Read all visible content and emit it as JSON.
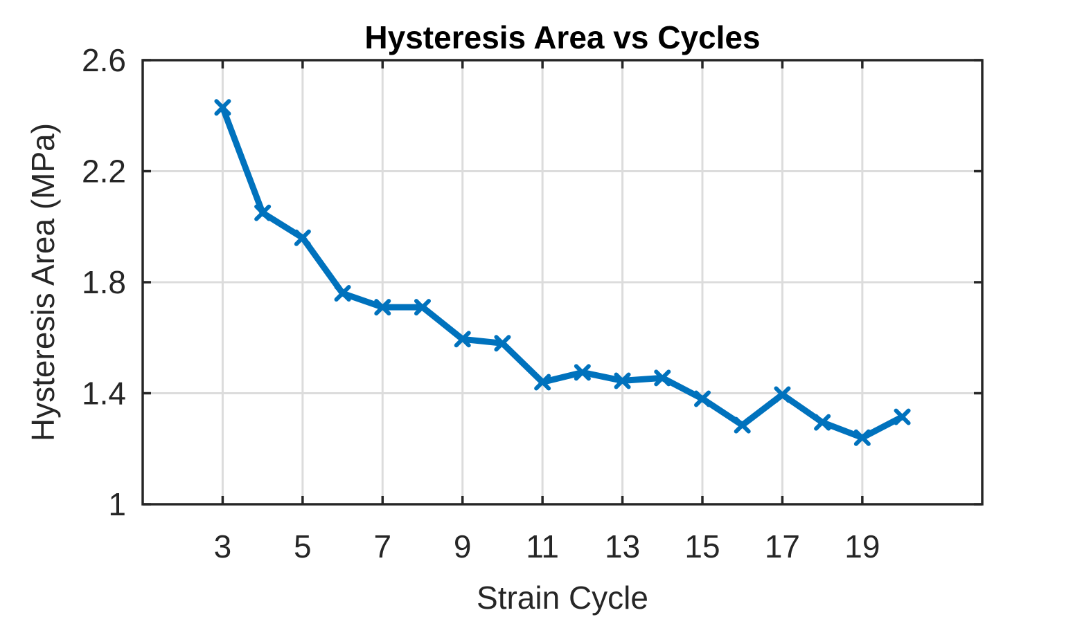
{
  "chart_data": {
    "type": "line",
    "title": "Hysteresis Area vs Cycles",
    "xlabel": "Strain Cycle",
    "ylabel": "Hysteresis Area (MPa)",
    "xlim": [
      1,
      22
    ],
    "ylim": [
      1,
      2.6
    ],
    "xticks": [
      3,
      5,
      7,
      9,
      11,
      13,
      15,
      17,
      19
    ],
    "xtick_labels": [
      "3",
      "5",
      "7",
      "9",
      "11",
      "13",
      "15",
      "17",
      "19"
    ],
    "yticks": [
      1,
      1.4,
      1.8,
      2.2,
      2.6
    ],
    "ytick_labels": [
      "1",
      "1.4",
      "1.8",
      "2.2",
      "2.6"
    ],
    "grid": true,
    "series": [
      {
        "color": "#0072BD",
        "marker": "x",
        "x": [
          3,
          4,
          5,
          6,
          7,
          8,
          9,
          10,
          11,
          12,
          13,
          14,
          15,
          16,
          17,
          18,
          19,
          20
        ],
        "y": [
          2.43,
          2.05,
          1.96,
          1.76,
          1.71,
          1.71,
          1.595,
          1.58,
          1.44,
          1.475,
          1.445,
          1.455,
          1.38,
          1.285,
          1.395,
          1.295,
          1.24,
          1.315
        ]
      }
    ]
  }
}
